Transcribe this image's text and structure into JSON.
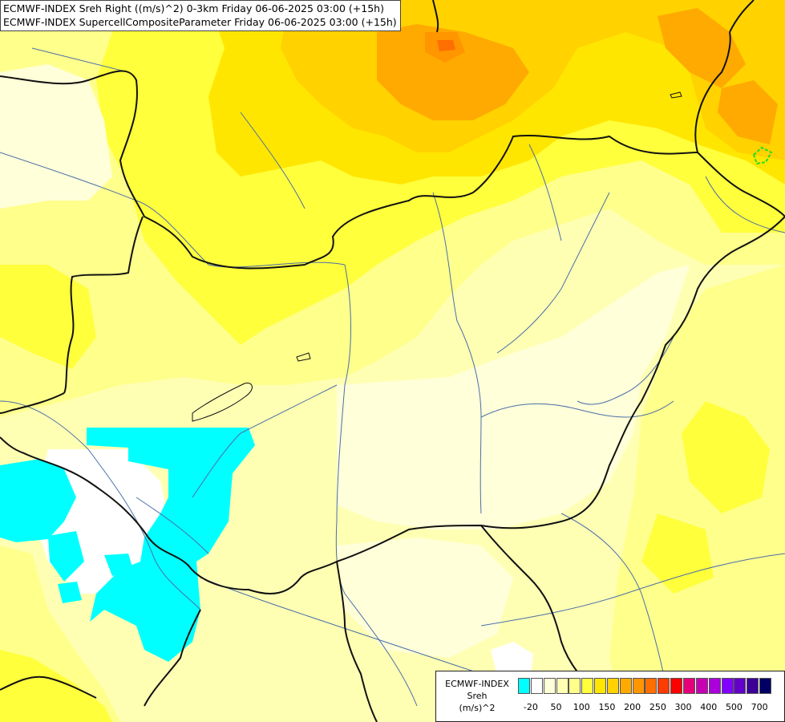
{
  "header": {
    "line1": "ECMWF-INDEX Sreh Right ((m/s)^2) 0-3km Friday 06-06-2025 03:00 (+15h)",
    "line2": "ECMWF-INDEX SupercellCompositeParameter Friday 06-06-2025 03:00 (+15h)"
  },
  "legend": {
    "line1": "ECMWF-INDEX",
    "line2": "Sreh",
    "line3": "(m/s)^2",
    "colors": [
      "#00ffff",
      "#ffffff",
      "#ffffd9",
      "#ffffb4",
      "#ffff8c",
      "#ffff3c",
      "#ffe600",
      "#ffd200",
      "#ffaa00",
      "#ff9600",
      "#ff6e00",
      "#ff3c00",
      "#ff0000",
      "#e6007a",
      "#c800b4",
      "#aa00dc",
      "#8200ff",
      "#6400c8",
      "#3c0096",
      "#000064"
    ],
    "ticks": [
      "-20",
      "50",
      "100",
      "150",
      "200",
      "250",
      "300",
      "400",
      "500",
      "700"
    ]
  }
}
